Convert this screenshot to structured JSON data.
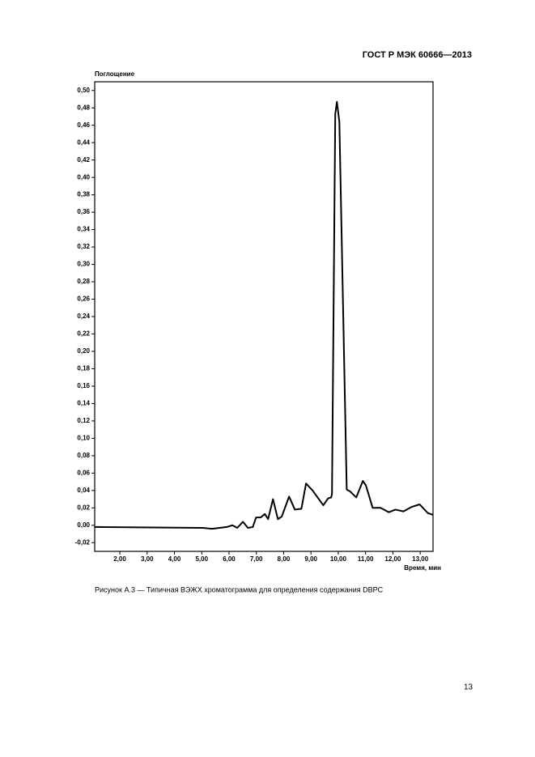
{
  "header": "ГОСТ Р МЭК 60666—2013",
  "chart_data": {
    "type": "line",
    "y_label": "Поглощение",
    "x_label": "Время, мин",
    "x": [
      1.08,
      5.03,
      5.38,
      5.92,
      6.12,
      6.3,
      6.51,
      6.69,
      6.87,
      6.99,
      7.16,
      7.31,
      7.43,
      7.61,
      7.79,
      7.93,
      8.2,
      8.41,
      8.65,
      8.82,
      9.06,
      9.45,
      9.63,
      9.74,
      9.77,
      9.89,
      9.95,
      10.04,
      10.31,
      10.43,
      10.66,
      10.9,
      11.01,
      11.26,
      11.55,
      11.85,
      12.09,
      12.39,
      12.68,
      12.98,
      13.28,
      13.47
    ],
    "series": [
      {
        "color": "#000000",
        "values": [
          -0.002,
          -0.003,
          -0.004,
          -0.002,
          0.0,
          -0.003,
          0.004,
          -0.003,
          -0.002,
          0.009,
          0.009,
          0.013,
          0.007,
          0.03,
          0.007,
          0.01,
          0.033,
          0.018,
          0.019,
          0.048,
          0.04,
          0.023,
          0.031,
          0.032,
          0.036,
          0.473,
          0.487,
          0.464,
          0.041,
          0.039,
          0.032,
          0.051,
          0.046,
          0.02,
          0.02,
          0.015,
          0.018,
          0.016,
          0.021,
          0.024,
          0.014,
          0.012
        ]
      }
    ],
    "xlim": [
      1.08,
      13.47
    ],
    "ylim": [
      -0.03,
      0.51
    ],
    "xticks": [
      {
        "value": 2,
        "label": "2,00"
      },
      {
        "value": 3,
        "label": "3,00"
      },
      {
        "value": 4,
        "label": "4,00"
      },
      {
        "value": 5,
        "label": "5,00"
      },
      {
        "value": 6,
        "label": "6,00"
      },
      {
        "value": 7,
        "label": "7,00"
      },
      {
        "value": 8,
        "label": "8,00"
      },
      {
        "value": 9,
        "label": "9,00"
      },
      {
        "value": 10,
        "label": "10,00"
      },
      {
        "value": 11,
        "label": "11,00"
      },
      {
        "value": 12,
        "label": "12,00"
      },
      {
        "value": 13,
        "label": "13,00"
      }
    ],
    "yticks": [
      {
        "value": -0.02,
        "label": "-0,02"
      },
      {
        "value": 0,
        "label": "0,00"
      },
      {
        "value": 0.02,
        "label": "0,02"
      },
      {
        "value": 0.04,
        "label": "0,04"
      },
      {
        "value": 0.06,
        "label": "0,06"
      },
      {
        "value": 0.08,
        "label": "0,08"
      },
      {
        "value": 0.1,
        "label": "0,10"
      },
      {
        "value": 0.12,
        "label": "0,12"
      },
      {
        "value": 0.14,
        "label": "0,14"
      },
      {
        "value": 0.16,
        "label": "0,16"
      },
      {
        "value": 0.18,
        "label": "0,18"
      },
      {
        "value": 0.2,
        "label": "0,20"
      },
      {
        "value": 0.22,
        "label": "0,22"
      },
      {
        "value": 0.24,
        "label": "0,24"
      },
      {
        "value": 0.26,
        "label": "0,26"
      },
      {
        "value": 0.28,
        "label": "0,28"
      },
      {
        "value": 0.3,
        "label": "0,30"
      },
      {
        "value": 0.32,
        "label": "0,32"
      },
      {
        "value": 0.34,
        "label": "0,34"
      },
      {
        "value": 0.36,
        "label": "0,36"
      },
      {
        "value": 0.38,
        "label": "0,38"
      },
      {
        "value": 0.4,
        "label": "0,40"
      },
      {
        "value": 0.42,
        "label": "0,42"
      },
      {
        "value": 0.44,
        "label": "0,44"
      },
      {
        "value": 0.46,
        "label": "0,46"
      },
      {
        "value": 0.48,
        "label": "0,48"
      },
      {
        "value": 0.5,
        "label": "0,50"
      }
    ],
    "grid": false
  },
  "caption": "Рисунок А.3 — Типичная ВЭЖХ хроматограмма для определения содержания DBPC",
  "page_number": "13"
}
